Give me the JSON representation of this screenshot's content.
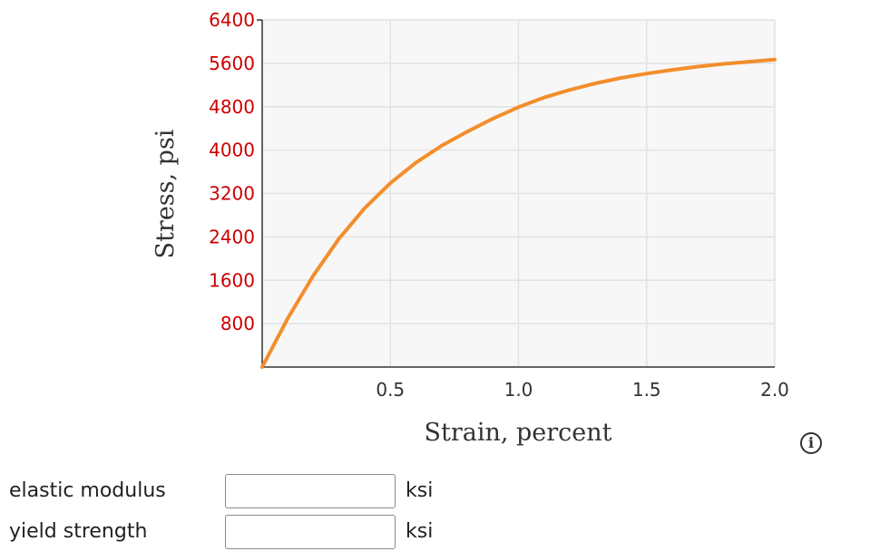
{
  "chart_data": {
    "type": "line",
    "xlabel": "Strain, percent",
    "ylabel": "Stress, psi",
    "xlim": [
      0,
      2.0
    ],
    "ylim": [
      0,
      6400
    ],
    "x_ticks": [
      "0.5",
      "1.0",
      "1.5",
      "2.0"
    ],
    "y_ticks": [
      "800",
      "1600",
      "2400",
      "3200",
      "4000",
      "4800",
      "5600",
      "6400"
    ],
    "grid": true,
    "series": [
      {
        "color": "#f28e2b",
        "x": [
          0,
          0.1,
          0.2,
          0.3,
          0.4,
          0.5,
          0.6,
          0.7,
          0.8,
          0.9,
          1.0,
          1.1,
          1.2,
          1.3,
          1.4,
          1.5,
          1.6,
          1.7,
          1.8,
          1.9,
          2.0
        ],
        "y": [
          0,
          900,
          1690,
          2370,
          2930,
          3390,
          3770,
          4080,
          4340,
          4580,
          4790,
          4970,
          5110,
          5230,
          5330,
          5410,
          5480,
          5540,
          5590,
          5630,
          5670
        ]
      }
    ]
  },
  "info_icon": "info-icon",
  "fields": [
    {
      "label": "elastic modulus",
      "value": "",
      "unit": "ksi"
    },
    {
      "label": "yield strength",
      "value": "",
      "unit": "ksi"
    }
  ]
}
